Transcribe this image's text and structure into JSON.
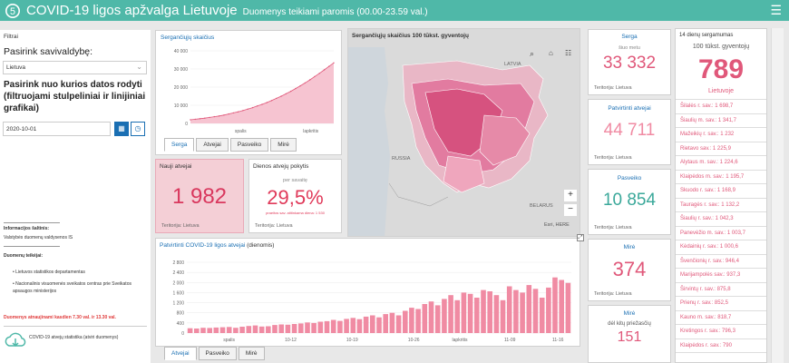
{
  "header": {
    "title": "COVID-19 ligos apžvalga Lietuvoje",
    "subtitle": "Duomenys teikiami paromis (00.00-23.59 val.)"
  },
  "filters": {
    "heading": "Filtrai",
    "municipality_label": "Pasirink savivaldybę:",
    "municipality_value": "Lietuva",
    "date_label": "Pasirink nuo kurios datos rodyti (filtruojami stulpeliniai ir linijiniai grafikai)",
    "date_value": "2020-10-01"
  },
  "info": {
    "source_title": "Informacijos šaltinis:",
    "source_text": "Valstybės duomenų valdysenos IS",
    "providers_title": "Duomenų teikėjai:",
    "providers": [
      "Lietuvos statistikos departamentas",
      "Nacionalinis visuomenės sveikatos centras prie Sveikatos apsaugos ministerijos"
    ],
    "update_note": "Duomenys atnaujinami kasdien 7.30 val. ir 13.30 val.",
    "footer_link": "COVID-19 atvejų statistika (atviri duomenys)"
  },
  "cumulative_panel": {
    "title": "Sergančiųjų skaičius",
    "tabs": [
      "Serga",
      "Atvejai",
      "Pasveiko",
      "Mirė"
    ],
    "active_tab": 0,
    "chart_data": {
      "type": "area",
      "x_tick_labels": [
        "spalis",
        "lapkritis"
      ],
      "y_ticks": [
        "40 000",
        "30 000",
        "20 000",
        "10 000",
        "0"
      ],
      "ylim": [
        0,
        40000
      ],
      "values": [
        2000,
        2300,
        2600,
        2900,
        3300,
        3700,
        4100,
        4600,
        5200,
        5800,
        6400,
        7100,
        7900,
        8700,
        9600,
        10500,
        11500,
        12600,
        13800,
        15000,
        16300,
        17700,
        19200,
        20700,
        22300,
        24000,
        25800,
        27600,
        29500,
        31400,
        33332
      ]
    }
  },
  "new_cases_panel": {
    "title": "Nauji atvejai",
    "value": "1 982",
    "territory": "Teritorija: Lietuva"
  },
  "change_panel": {
    "title": "Dienos atvejų pokytis",
    "period": "per savaitę",
    "value": "29,5%",
    "note": "praeitos sav. atitinkama diena: 1 530",
    "territory": "Teritorija: Lietuva"
  },
  "map_panel": {
    "title": "Sergančiųjų skaičius 100 tūkst. gyventojų",
    "labels": [
      "LATVIA",
      "RUSSIA",
      "BELARUS"
    ],
    "attribution": "Esri, HERE",
    "zoom_in": "+",
    "zoom_out": "−"
  },
  "kpi": {
    "serga": {
      "title": "Serga",
      "sub": "šiuo metu",
      "value": "33 332",
      "territory": "Teritorija: Lietuva"
    },
    "confirmed": {
      "title": "Patvirtinti atvejai",
      "value": "44 711",
      "territory": "Teritorija: Lietuva"
    },
    "recovered": {
      "title": "Pasveiko",
      "value": "10 854",
      "territory": "Teritorija: Lietuva"
    },
    "deaths": {
      "title": "Mirė",
      "value": "374",
      "territory": "Teritorija: Lietuva"
    },
    "deaths_other": {
      "title": "Mirė",
      "sub": "dėl kitų priežasčių",
      "value": "151"
    }
  },
  "incidence_panel": {
    "title": "14 dienų sergamumas",
    "sub": "100 tūkst. gyventojų",
    "value": "789",
    "region": "Lietuvoje",
    "rows": [
      "Šilalės r. sav.: 1 698,7",
      "Šiaulių m. sav.: 1 341,7",
      "Mažeikių r. sav.: 1 232",
      "Rietavo sav.: 1 225,9",
      "Alytaus m. sav.: 1 224,6",
      "Klaipėdos m. sav.: 1 195,7",
      "Skuodo r. sav.: 1 168,9",
      "Tauragės r. sav.: 1 132,2",
      "Šiaulių r. sav.: 1 042,3",
      "Panevėžio m. sav.: 1 003,7",
      "Kėdainių r. sav.: 1 000,6",
      "Švenčionių r. sav.: 946,4",
      "Marijampolės sav.: 937,3",
      "Širvintų r. sav.: 875,8",
      "Prienų r. sav.: 852,5",
      "Kauno m. sav.: 818,7",
      "Kretingos r. sav.: 796,3",
      "Klaipėdos r. sav.: 790"
    ]
  },
  "daily_panel": {
    "title": "Patvirtinti COVID-19 ligos atvejai",
    "title_suffix": "(dienomis)",
    "tabs": [
      "Atvejai",
      "Pasveiko",
      "Mirė"
    ],
    "active_tab": 0,
    "chart_data": {
      "type": "bar",
      "x_tick_labels": [
        "spalis",
        "10-12",
        "10-19",
        "10-26",
        "lapkritis",
        "11-09",
        "11-16"
      ],
      "y_ticks": [
        "2 800",
        "2 400",
        "2 000",
        "1 600",
        "1 200",
        "800",
        "400",
        "0"
      ],
      "ylim": [
        0,
        2800
      ],
      "values": [
        190,
        180,
        210,
        200,
        220,
        230,
        240,
        210,
        250,
        280,
        300,
        260,
        270,
        320,
        340,
        330,
        360,
        380,
        420,
        400,
        450,
        470,
        520,
        480,
        560,
        600,
        550,
        650,
        700,
        620,
        750,
        800,
        700,
        880,
        1000,
        950,
        1150,
        1250,
        1100,
        1350,
        1500,
        1300,
        1600,
        1550,
        1400,
        1700,
        1650,
        1500,
        1300,
        1850,
        1700,
        1600,
        1900,
        1750,
        1400,
        1800,
        2200,
        2100,
        1982
      ]
    }
  },
  "colors": {
    "accent": "#4fb8a8",
    "pink": "#e0587a",
    "bar": "#f08ba3",
    "link": "#1a6fb3"
  }
}
